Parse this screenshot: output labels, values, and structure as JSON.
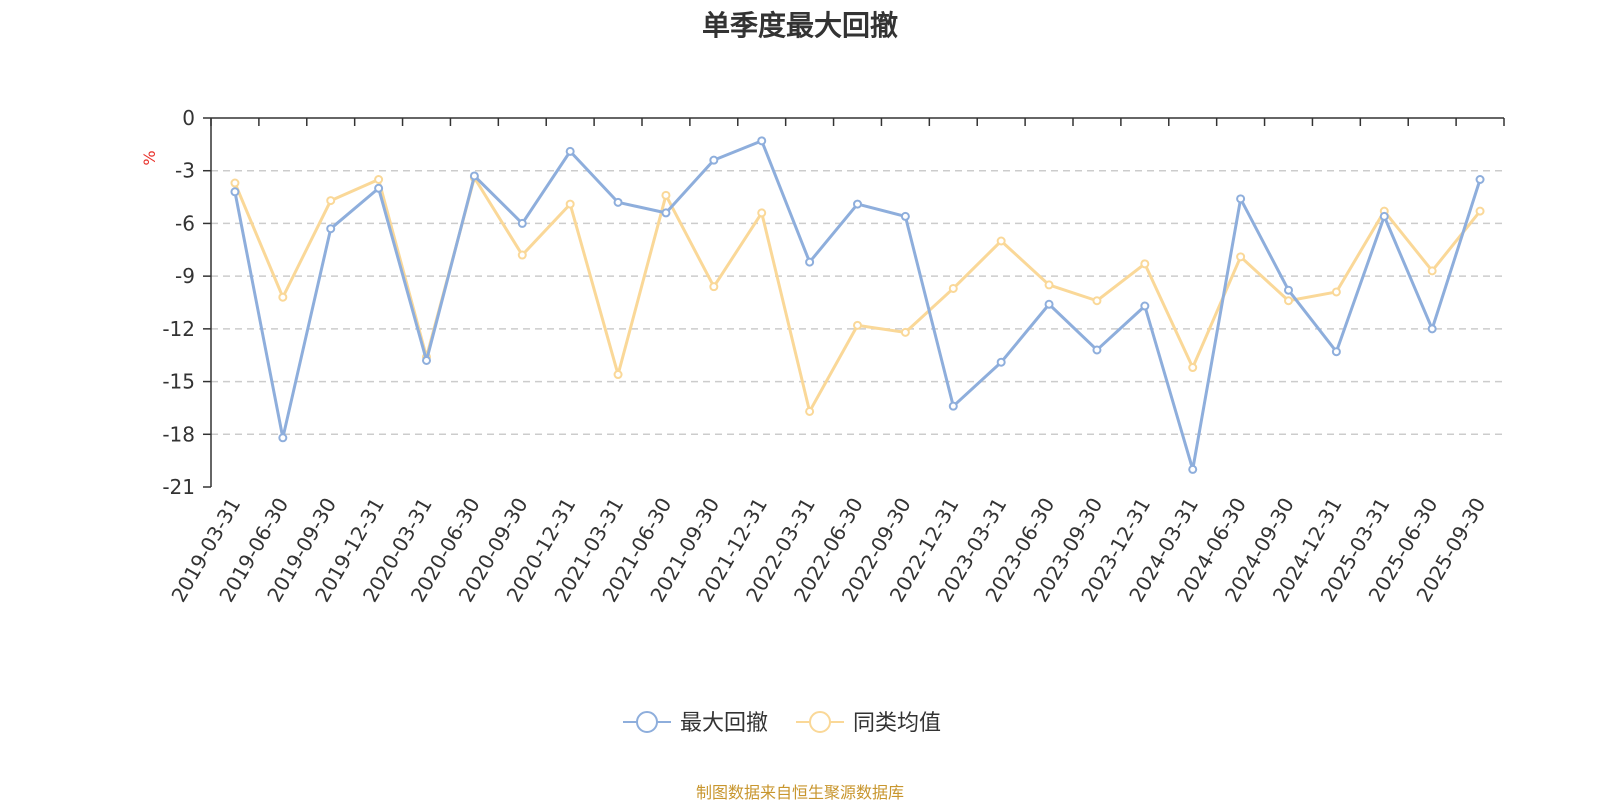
{
  "page": {
    "title": "单季度最大回撤",
    "source_note": "制图数据来自恒生聚源数据库"
  },
  "chart_data": {
    "type": "line",
    "title": "单季度最大回撤",
    "xlabel": "",
    "ylabel": "%",
    "ylim": [
      -21,
      0
    ],
    "yticks": [
      0,
      -3,
      -6,
      -9,
      -12,
      -15,
      -18,
      -21
    ],
    "grid": true,
    "legend_position": "bottom-center",
    "categories": [
      "2019-03-31",
      "2019-06-30",
      "2019-09-30",
      "2019-12-31",
      "2020-03-31",
      "2020-06-30",
      "2020-09-30",
      "2020-12-31",
      "2021-03-31",
      "2021-06-30",
      "2021-09-30",
      "2021-12-31",
      "2022-03-31",
      "2022-06-30",
      "2022-09-30",
      "2022-12-31",
      "2023-03-31",
      "2023-06-30",
      "2023-09-30",
      "2023-12-31",
      "2024-03-31",
      "2024-06-30",
      "2024-09-30",
      "2024-12-31",
      "2025-03-31",
      "2025-06-30",
      "2025-09-30"
    ],
    "series": [
      {
        "name": "最大回撤",
        "color": "#8eaedc",
        "values": [
          -4.2,
          -18.2,
          -6.3,
          -4.0,
          -13.8,
          -3.3,
          -6.0,
          -1.9,
          -4.8,
          -5.4,
          -2.4,
          -1.3,
          -8.2,
          -4.9,
          -5.6,
          -16.4,
          -13.9,
          -10.6,
          -13.2,
          -10.7,
          -20.0,
          -4.6,
          -9.8,
          -13.3,
          -5.6,
          -12.0,
          -3.5
        ]
      },
      {
        "name": "同类均值",
        "color": "#fad898",
        "values": [
          -3.7,
          -10.2,
          -4.7,
          -3.5,
          -13.6,
          -3.4,
          -7.8,
          -4.9,
          -14.6,
          -4.4,
          -9.6,
          -5.4,
          -16.7,
          -11.8,
          -12.2,
          -9.7,
          -7.0,
          -9.5,
          -10.4,
          -8.3,
          -14.2,
          -7.9,
          -10.4,
          -9.9,
          -5.3,
          -8.7,
          -5.3
        ]
      }
    ]
  }
}
